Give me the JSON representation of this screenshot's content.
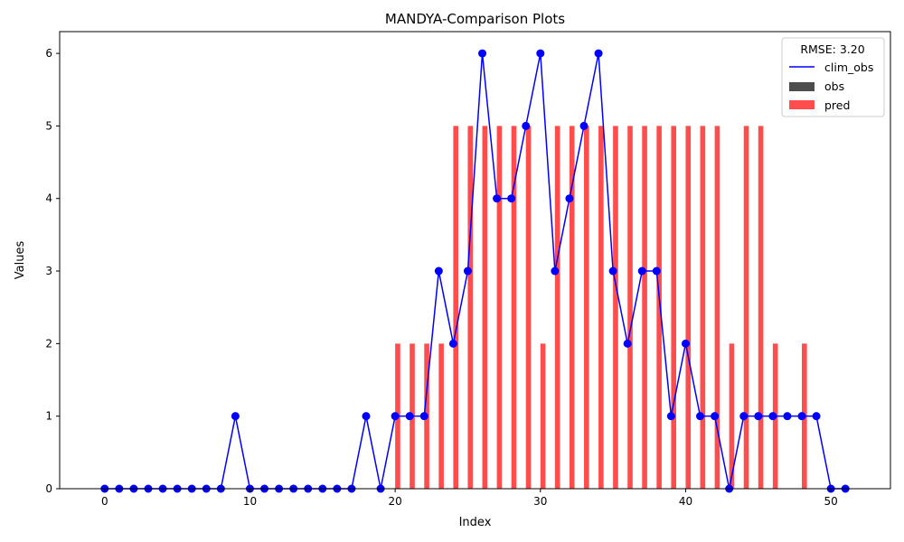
{
  "chart_data": {
    "type": "bar+line",
    "title": "MANDYA-Comparison Plots",
    "xlabel": "Index",
    "ylabel": "Values",
    "xlim": [
      -3.1,
      54.1
    ],
    "ylim": [
      0,
      6.3
    ],
    "x_ticks": [
      0,
      10,
      20,
      30,
      40,
      50
    ],
    "y_ticks": [
      0,
      1,
      2,
      3,
      4,
      5,
      6
    ],
    "legend_title": "RMSE: 3.20",
    "legend_position": "top-right",
    "series": [
      {
        "name": "clim_obs",
        "kind": "line",
        "color": "#0000ff",
        "marker": "circle",
        "x": [
          0,
          1,
          2,
          3,
          4,
          5,
          6,
          7,
          8,
          9,
          10,
          11,
          12,
          13,
          14,
          15,
          16,
          17,
          18,
          19,
          20,
          21,
          22,
          23,
          24,
          25,
          26,
          27,
          28,
          29,
          30,
          31,
          32,
          33,
          34,
          35,
          36,
          37,
          38,
          39,
          40,
          41,
          42,
          43,
          44,
          45,
          46,
          47,
          48,
          49,
          50,
          51
        ],
        "values": [
          0,
          0,
          0,
          0,
          0,
          0,
          0,
          0,
          0,
          1,
          0,
          0,
          0,
          0,
          0,
          0,
          0,
          0,
          1,
          0,
          1,
          1,
          1,
          3,
          2,
          3,
          6,
          4,
          4,
          5,
          6,
          3,
          4,
          5,
          6,
          3,
          2,
          3,
          3,
          1,
          2,
          1,
          1,
          0,
          1,
          1,
          1,
          1,
          1,
          1,
          0,
          0
        ]
      },
      {
        "name": "obs",
        "kind": "bar",
        "color": "#4d4d4d",
        "x": [],
        "values": []
      },
      {
        "name": "pred",
        "kind": "bar",
        "color": "#ff4d4d",
        "x": [
          20,
          21,
          22,
          23,
          24,
          25,
          26,
          27,
          28,
          29,
          30,
          31,
          32,
          33,
          34,
          35,
          36,
          37,
          38,
          39,
          40,
          41,
          42,
          43,
          44,
          45,
          46,
          48
        ],
        "values": [
          2,
          2,
          2,
          2,
          5,
          5,
          5,
          5,
          5,
          5,
          2,
          5,
          5,
          5,
          5,
          5,
          5,
          5,
          5,
          5,
          5,
          5,
          5,
          2,
          5,
          5,
          2,
          2
        ]
      }
    ]
  }
}
